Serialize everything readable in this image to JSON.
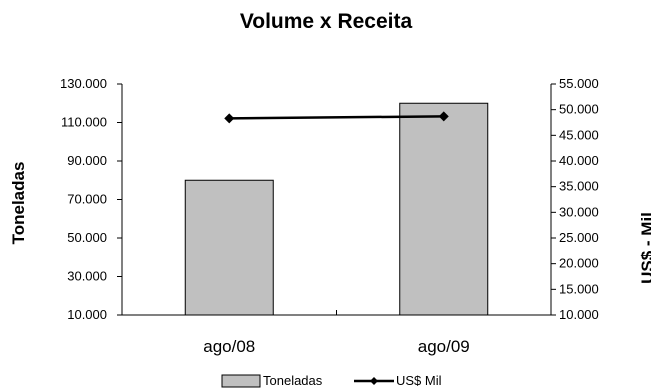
{
  "chart_data": {
    "type": "bar",
    "title": "Volume x Receita",
    "categories": [
      "ago/08",
      "ago/09"
    ],
    "series": [
      {
        "name": "Toneladas",
        "type": "bar",
        "axis": "left",
        "values": [
          80000,
          120000
        ],
        "color": "#c0c0c0"
      },
      {
        "name": "US$ Mil",
        "type": "line",
        "axis": "right",
        "marker": "diamond",
        "values": [
          48300,
          48700
        ],
        "color": "#000000"
      }
    ],
    "ylabel": "Toneladas",
    "ylabel_right": "US$ - Mil",
    "ylim": [
      10000,
      130000
    ],
    "ylim_right": [
      10000,
      55000
    ],
    "yticks": [
      "10.000",
      "30.000",
      "50.000",
      "70.000",
      "90.000",
      "110.000",
      "130.000"
    ],
    "yticks_right": [
      "10.000",
      "15.000",
      "20.000",
      "25.000",
      "30.000",
      "35.000",
      "40.000",
      "45.000",
      "50.000",
      "55.000"
    ],
    "grid": false,
    "legend": "bottom"
  }
}
